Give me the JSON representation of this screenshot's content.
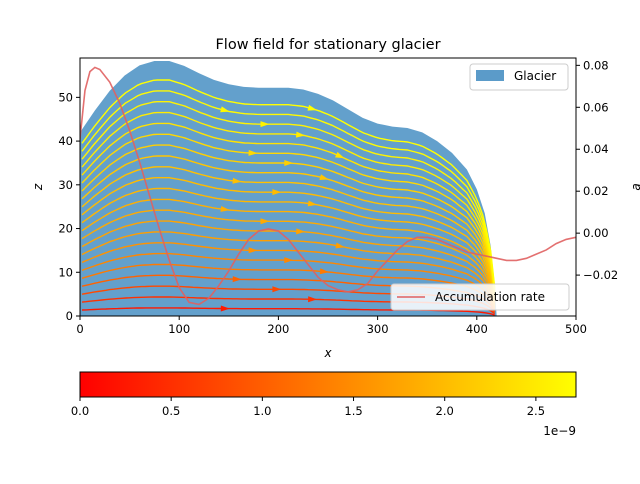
{
  "chart_data": {
    "type": "area",
    "title": "Flow field for stationary glacier",
    "xlabel": "x",
    "ylabel_left": "z",
    "ylabel_right": "a",
    "xlim": [
      0,
      500
    ],
    "ylim_left": [
      0,
      59
    ],
    "ylim_right": [
      -0.0395,
      0.0835
    ],
    "x_ticks": [
      0,
      100,
      200,
      300,
      400,
      500
    ],
    "y_ticks_left": [
      0,
      10,
      20,
      30,
      40,
      50
    ],
    "y_ticks_right": [
      -0.02,
      0.0,
      0.02,
      0.04,
      0.06,
      0.08
    ],
    "y_tick_labels_right": [
      "−0.02",
      "0.00",
      "0.02",
      "0.04",
      "0.06",
      "0.08"
    ],
    "glacier": {
      "name": "Glacier",
      "color": "#5b9bc9",
      "surface_x": [
        0,
        15,
        30,
        45,
        60,
        75,
        90,
        105,
        120,
        135,
        150,
        165,
        180,
        195,
        210,
        225,
        240,
        255,
        270,
        285,
        300,
        315,
        330,
        345,
        360,
        375,
        390,
        400,
        408,
        414,
        418,
        420
      ],
      "surface_z": [
        42,
        47,
        51.5,
        55,
        57.3,
        58.3,
        58.3,
        57.2,
        55.5,
        54,
        53,
        52.4,
        52.2,
        52.2,
        52.2,
        51.8,
        50.8,
        49.3,
        47.3,
        45.3,
        44,
        43.3,
        43,
        42,
        40,
        37.3,
        33.5,
        29,
        23.5,
        16,
        7,
        0
      ]
    },
    "accumulation": {
      "name": "Accumulation rate",
      "color": "#e06060",
      "x": [
        0,
        5,
        10,
        15,
        20,
        30,
        40,
        50,
        60,
        70,
        80,
        90,
        100,
        110,
        120,
        130,
        140,
        150,
        160,
        170,
        180,
        190,
        200,
        210,
        220,
        230,
        240,
        250,
        260,
        270,
        280,
        290,
        300,
        310,
        320,
        330,
        340,
        350,
        360,
        370,
        380,
        390,
        400,
        410,
        420,
        430,
        440,
        450,
        460,
        470,
        480,
        490,
        500
      ],
      "a": [
        0.045,
        0.068,
        0.077,
        0.079,
        0.078,
        0.072,
        0.062,
        0.049,
        0.034,
        0.018,
        0.002,
        -0.013,
        -0.026,
        -0.033,
        -0.034,
        -0.031,
        -0.025,
        -0.018,
        -0.01,
        -0.003,
        0.001,
        0.002,
        0.001,
        -0.003,
        -0.009,
        -0.015,
        -0.021,
        -0.025,
        -0.027,
        -0.028,
        -0.027,
        -0.024,
        -0.018,
        -0.013,
        -0.008,
        -0.004,
        -0.002,
        -0.002,
        -0.003,
        -0.005,
        -0.007,
        -0.009,
        -0.01,
        -0.011,
        -0.012,
        -0.013,
        -0.013,
        -0.012,
        -0.01,
        -0.008,
        -0.005,
        -0.003,
        -0.002
      ]
    },
    "streamlines_note_levels": [
      {
        "z0": 1.5,
        "c": 0.05
      },
      {
        "z0": 3.5,
        "c": 0.15
      },
      {
        "z0": 5.5,
        "c": 0.25
      },
      {
        "z0": 7.5,
        "c": 0.35
      },
      {
        "z0": 9.5,
        "c": 0.45
      },
      {
        "z0": 11.5,
        "c": 0.5
      },
      {
        "z0": 13.5,
        "c": 0.55
      },
      {
        "z0": 15.5,
        "c": 0.6
      },
      {
        "z0": 17.5,
        "c": 0.62
      },
      {
        "z0": 19.5,
        "c": 0.65
      },
      {
        "z0": 21.5,
        "c": 0.67
      },
      {
        "z0": 23.5,
        "c": 0.7
      },
      {
        "z0": 25.5,
        "c": 0.72
      },
      {
        "z0": 27.5,
        "c": 0.74
      },
      {
        "z0": 29.5,
        "c": 0.76
      },
      {
        "z0": 31.5,
        "c": 0.8
      },
      {
        "z0": 33.5,
        "c": 0.84
      },
      {
        "z0": 35.5,
        "c": 0.88
      },
      {
        "z0": 37.5,
        "c": 0.92
      },
      {
        "z0": 39.5,
        "c": 0.95
      },
      {
        "z0": 41.5,
        "c": 0.98
      },
      {
        "z0": 43.5,
        "c": 1.0
      }
    ],
    "legend_top": "top-right",
    "legend_bottom": "bottom-right",
    "colorbar": {
      "cmap": "autumn",
      "ticks": [
        0.0,
        0.5,
        1.0,
        1.5,
        2.0,
        2.5
      ],
      "tick_labels": [
        "0.0",
        "0.5",
        "1.0",
        "1.5",
        "2.0",
        "2.5"
      ],
      "max": 2.72,
      "offset_label": "1e−9",
      "colors": [
        "#ff0000",
        "#ffff00"
      ]
    }
  }
}
